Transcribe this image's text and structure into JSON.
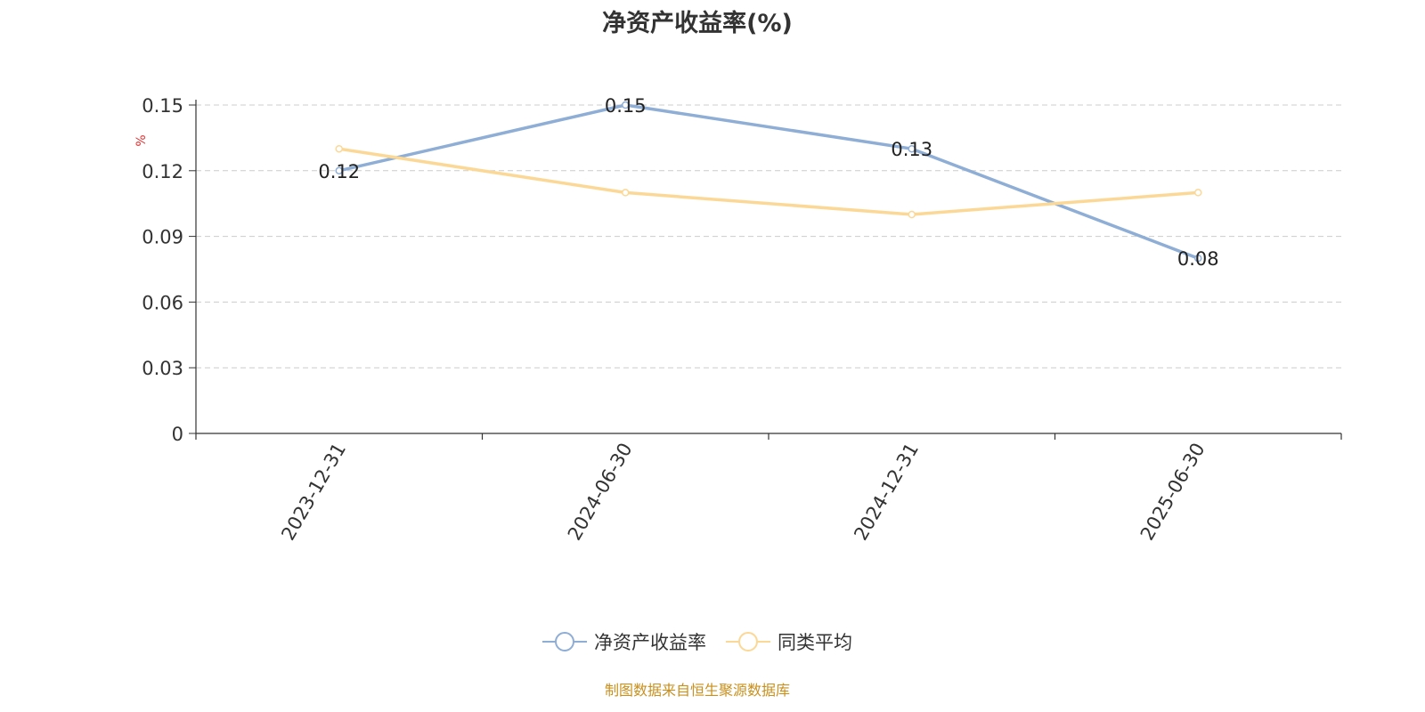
{
  "chart_data": {
    "type": "line",
    "title": "净资产收益率(%)",
    "ylabel": "%",
    "categories": [
      "2023-12-31",
      "2024-06-30",
      "2024-12-31",
      "2025-06-30"
    ],
    "ylim": [
      0,
      0.15
    ],
    "yticks": [
      "0",
      "0.03",
      "0.06",
      "0.09",
      "0.12",
      "0.15"
    ],
    "grid": true,
    "legend_position": "bottom",
    "series": [
      {
        "name": "净资产收益率",
        "values": [
          0.12,
          0.15,
          0.13,
          0.08
        ],
        "color": "#8eaed6",
        "show_labels": true
      },
      {
        "name": "同类平均",
        "values": [
          0.13,
          0.11,
          0.1,
          0.11
        ],
        "color": "#fbd896",
        "show_labels": false
      }
    ],
    "data_labels": [
      "0.12",
      "0.15",
      "0.13",
      "0.08"
    ],
    "source": "制图数据来自恒生聚源数据库"
  }
}
